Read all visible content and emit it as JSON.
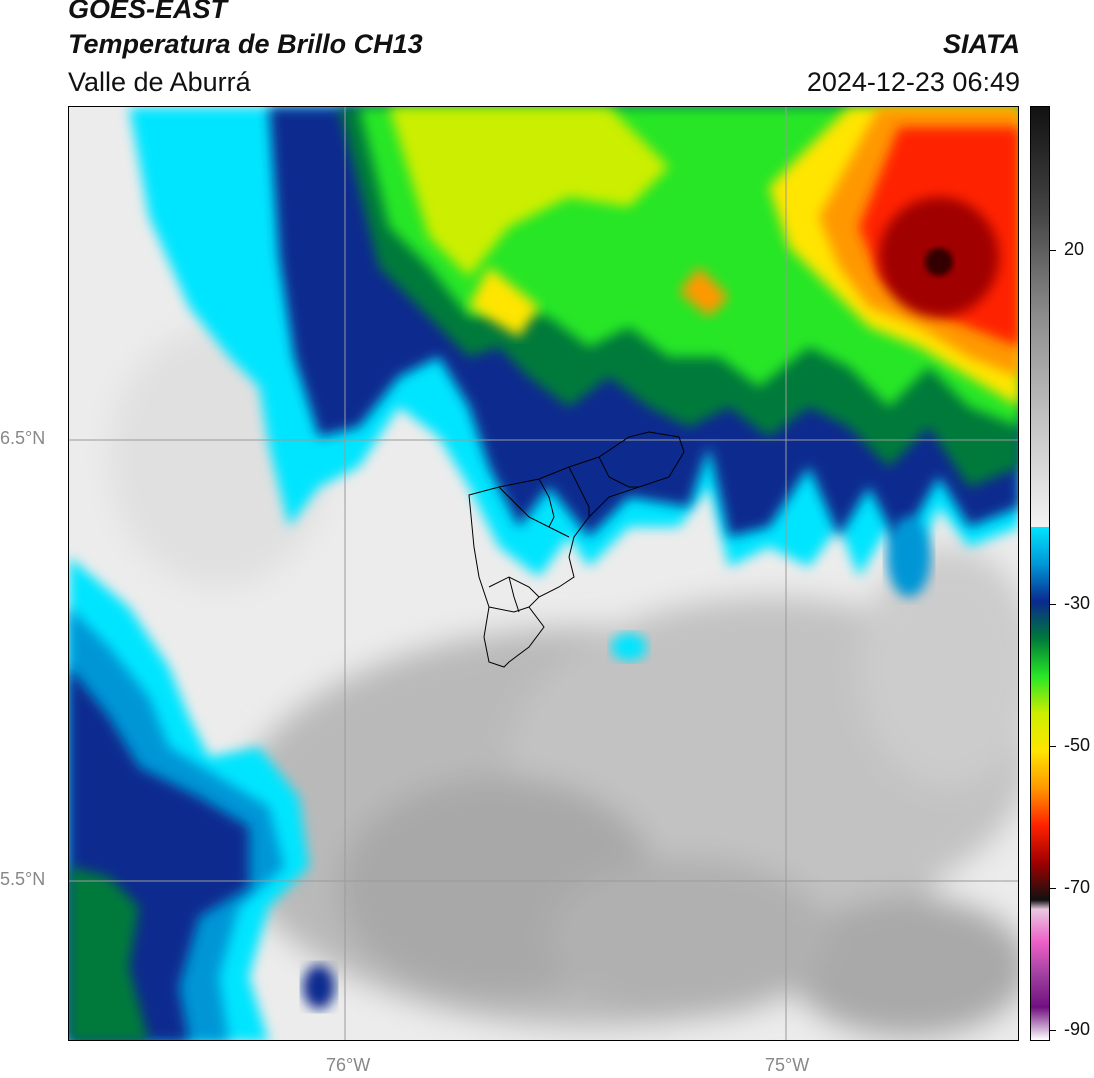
{
  "header": {
    "satellite": "GOES-EAST",
    "product": "Temperatura de Brillo CH13",
    "region": "Valle de Aburrá",
    "brand": "SIATA",
    "datetime": "2024-12-23 06:49"
  },
  "map": {
    "lat_labels": [
      "6.5°N",
      "5.5°N"
    ],
    "lon_labels": [
      "76°W",
      "75°W"
    ],
    "grid": true
  },
  "colorbar": {
    "tick_labels": [
      "20",
      "-30",
      "-50",
      "-70",
      "-90"
    ],
    "colors": {
      "gray_scale": [
        "#f3f3f3",
        "#c4c4c4",
        "#8d8d8d",
        "#444444",
        "#111111"
      ],
      "cold_scale": [
        "#00e5ff",
        "#0096d6",
        "#0a2a8f",
        "#007a3a",
        "#27e627",
        "#ccee00",
        "#ffe500",
        "#ff9800",
        "#ff2200",
        "#a00000",
        "#111111"
      ],
      "coldest_scale": [
        "#e8c8e0",
        "#ee60c8",
        "#a040a0",
        "#701080",
        "#ffffff"
      ]
    }
  }
}
